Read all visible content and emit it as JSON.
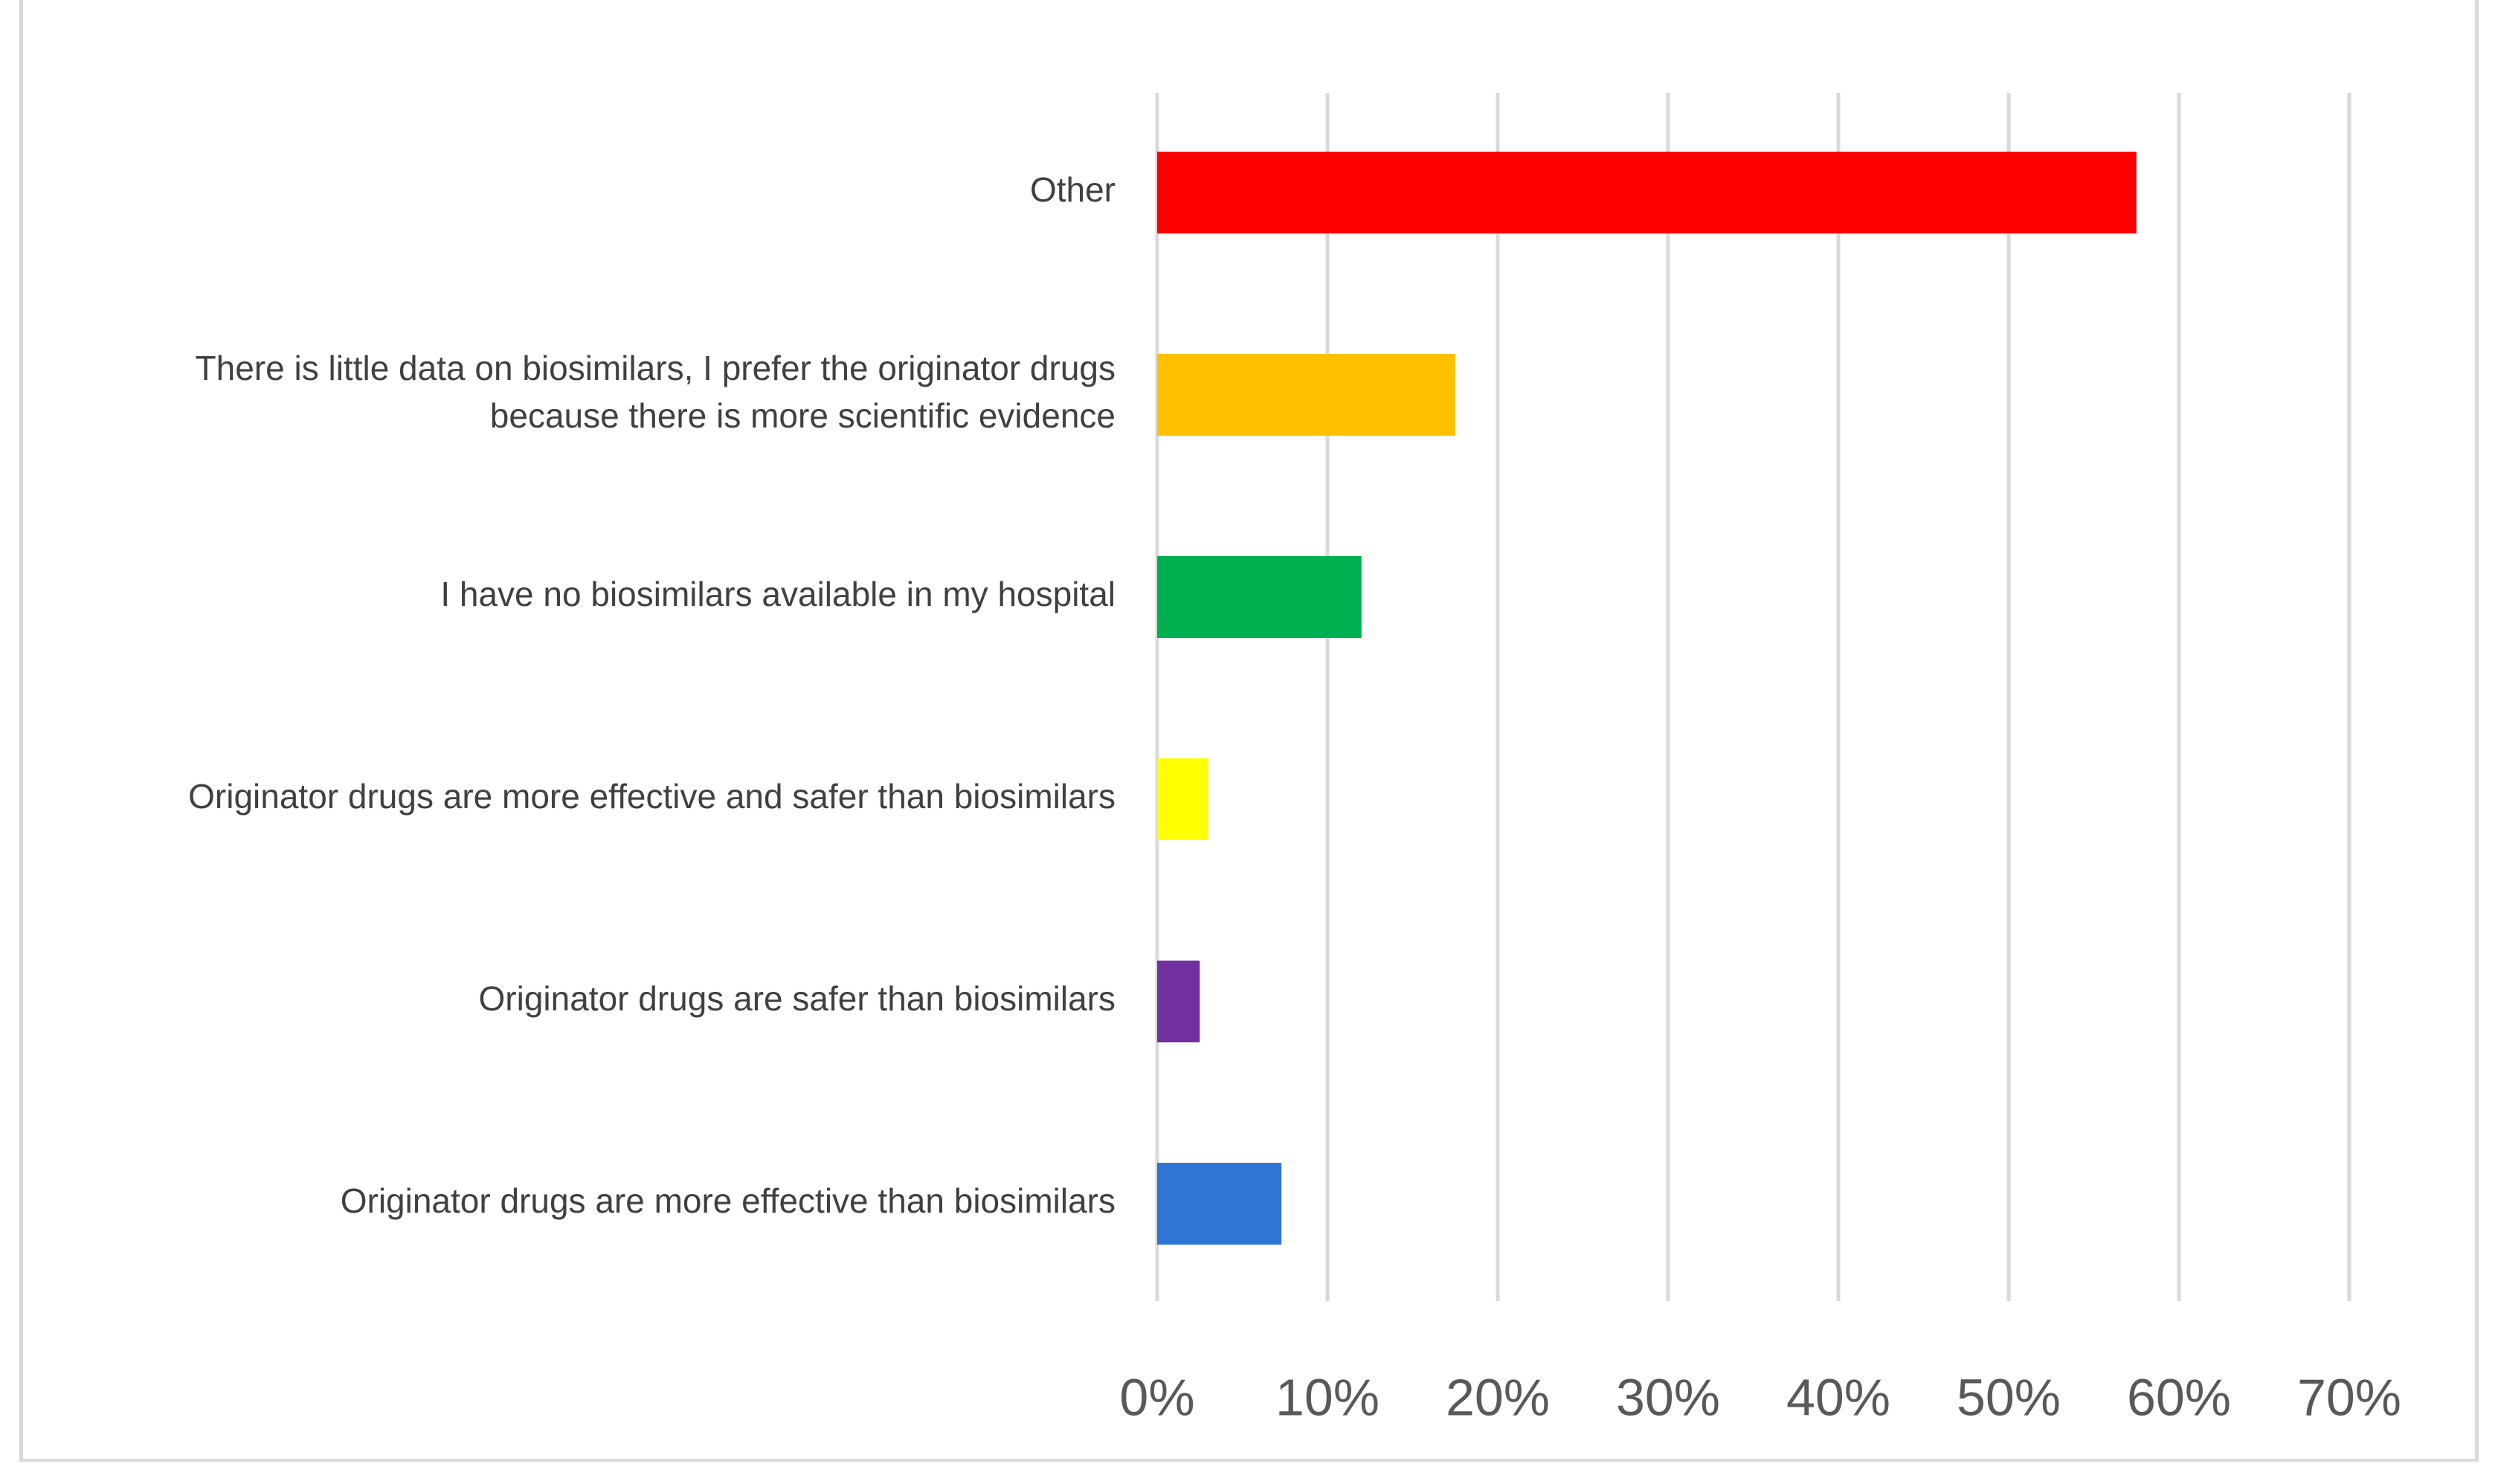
{
  "chart_data": {
    "type": "bar",
    "orientation": "horizontal",
    "title": "",
    "xlabel": "",
    "ylabel": "",
    "xlim": [
      0,
      0.7
    ],
    "grid": true,
    "legend": "none",
    "ticks": [
      {
        "value": 0.0,
        "label": "0%"
      },
      {
        "value": 0.1,
        "label": "10%"
      },
      {
        "value": 0.2,
        "label": "20%"
      },
      {
        "value": 0.3,
        "label": "30%"
      },
      {
        "value": 0.4,
        "label": "40%"
      },
      {
        "value": 0.5,
        "label": "50%"
      },
      {
        "value": 0.6,
        "label": "60%"
      },
      {
        "value": 0.7,
        "label": "70%"
      }
    ],
    "categories": [
      {
        "lines": [
          "Other"
        ],
        "value": 0.575,
        "color": "#ff0000"
      },
      {
        "lines": [
          "There is little data on biosimilars, I prefer the originator drugs",
          "because there is more scientific evidence"
        ],
        "value": 0.175,
        "color": "#ffc000"
      },
      {
        "lines": [
          "I have no biosimilars available in my hospital"
        ],
        "value": 0.12,
        "color": "#00b050"
      },
      {
        "lines": [
          "Originator drugs are more effective and safer than biosimilars"
        ],
        "value": 0.03,
        "color": "#ffff00"
      },
      {
        "lines": [
          "Originator drugs are safer than biosimilars"
        ],
        "value": 0.025,
        "color": "#7030a0"
      },
      {
        "lines": [
          "Originator drugs are more effective than biosimilars"
        ],
        "value": 0.073,
        "color": "#2e75d6"
      }
    ]
  }
}
